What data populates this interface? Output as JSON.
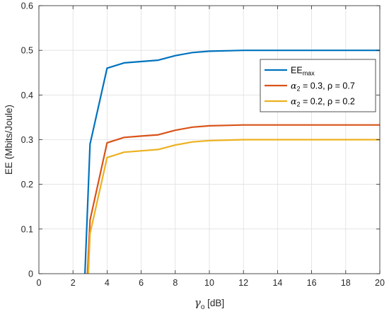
{
  "chart_data": {
    "type": "line",
    "title": "",
    "xlabel": {
      "symbol": "γ",
      "sub": "o",
      "rest": " [dB]"
    },
    "ylabel": "EE (Mbits/Joule)",
    "xlim": [
      0,
      20
    ],
    "ylim": [
      0,
      0.6
    ],
    "xticks": [
      0,
      2,
      4,
      6,
      8,
      10,
      12,
      14,
      16,
      18,
      20
    ],
    "yticks": [
      0,
      0.1,
      0.2,
      0.3,
      0.4,
      0.5,
      0.6
    ],
    "xtick_labels": [
      "0",
      "2",
      "4",
      "6",
      "8",
      "10",
      "12",
      "14",
      "16",
      "18",
      "20"
    ],
    "ytick_labels": [
      "0",
      "0.1",
      "0.2",
      "0.3",
      "0.4",
      "0.5",
      "0.6"
    ],
    "grid": true,
    "legend_position": "top-right",
    "series": [
      {
        "name": "EE_max",
        "label_parts": {
          "main": "EE",
          "sub": "max",
          "rest": ""
        },
        "color": "#0072BD",
        "x": [
          2.7,
          3,
          4,
          5,
          6,
          7,
          8,
          9,
          10,
          11,
          12,
          13,
          14,
          15,
          16,
          17,
          18,
          19,
          20
        ],
        "y": [
          0,
          0.29,
          0.46,
          0.472,
          0.475,
          0.478,
          0.488,
          0.495,
          0.498,
          0.499,
          0.5,
          0.5,
          0.5,
          0.5,
          0.5,
          0.5,
          0.5,
          0.5,
          0.5
        ]
      },
      {
        "name": "α2 = 0.3, ρ = 0.7",
        "label_parts": {
          "main": "α",
          "sub": "2",
          "rest": " = 0.3, ρ = 0.7"
        },
        "color": "#D95319",
        "x": [
          2.85,
          3,
          4,
          5,
          6,
          7,
          8,
          9,
          10,
          11,
          12,
          13,
          14,
          15,
          16,
          17,
          18,
          19,
          20
        ],
        "y": [
          0,
          0.12,
          0.293,
          0.305,
          0.308,
          0.311,
          0.321,
          0.328,
          0.331,
          0.332,
          0.333,
          0.333,
          0.333,
          0.333,
          0.333,
          0.333,
          0.333,
          0.333,
          0.333
        ]
      },
      {
        "name": "α2 = 0.2, ρ = 0.2",
        "label_parts": {
          "main": "α",
          "sub": "2",
          "rest": " = 0.2, ρ = 0.2"
        },
        "color": "#EDB120",
        "x": [
          2.9,
          3,
          4,
          5,
          6,
          7,
          8,
          9,
          10,
          11,
          12,
          13,
          14,
          15,
          16,
          17,
          18,
          19,
          20
        ],
        "y": [
          0,
          0.09,
          0.26,
          0.272,
          0.275,
          0.278,
          0.288,
          0.295,
          0.298,
          0.299,
          0.3,
          0.3,
          0.3,
          0.3,
          0.3,
          0.3,
          0.3,
          0.3,
          0.3
        ]
      }
    ]
  }
}
